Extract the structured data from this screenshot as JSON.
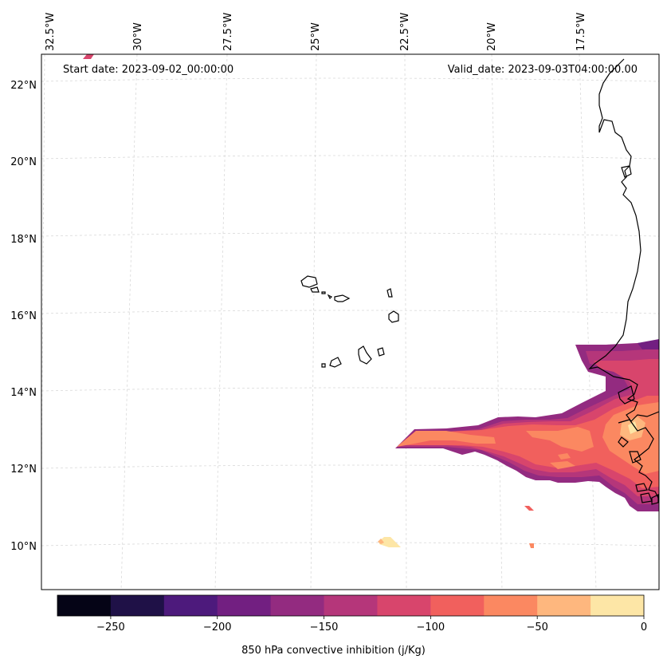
{
  "map": {
    "start_date_text": "Start date: 2023-09-02_00:00:00",
    "valid_date_text": "Valid_date: 2023-09-03T04:00:00.00",
    "variable": "850 hPa convective inhibition",
    "units": "j/Kg",
    "lon_labels": [
      "32.5°W",
      "30°W",
      "27.5°W",
      "25°W",
      "22.5°W",
      "20°W",
      "17.5°W"
    ],
    "lat_labels": [
      "22°N",
      "20°N",
      "18°N",
      "16°N",
      "14°N",
      "12°N",
      "10°N"
    ],
    "gridlines": true,
    "coastline_color": "#000000",
    "features": [
      "Cabo Verde islands",
      "West African coastline"
    ]
  },
  "colorbar": {
    "label": "850 hPa convective inhibition (j/Kg)",
    "ticks": [
      "−250",
      "−200",
      "−150",
      "−100",
      "−50",
      "0"
    ],
    "levels": [
      -275,
      -250,
      -225,
      -200,
      -175,
      -150,
      -125,
      -100,
      -75,
      -50,
      -25,
      0
    ],
    "colors": [
      "#050416",
      "#1f1147",
      "#4d1a7c",
      "#721f81",
      "#932b80",
      "#b5367a",
      "#d8456c",
      "#f1605d",
      "#fb8861",
      "#feb77e",
      "#fde6a6"
    ]
  }
}
